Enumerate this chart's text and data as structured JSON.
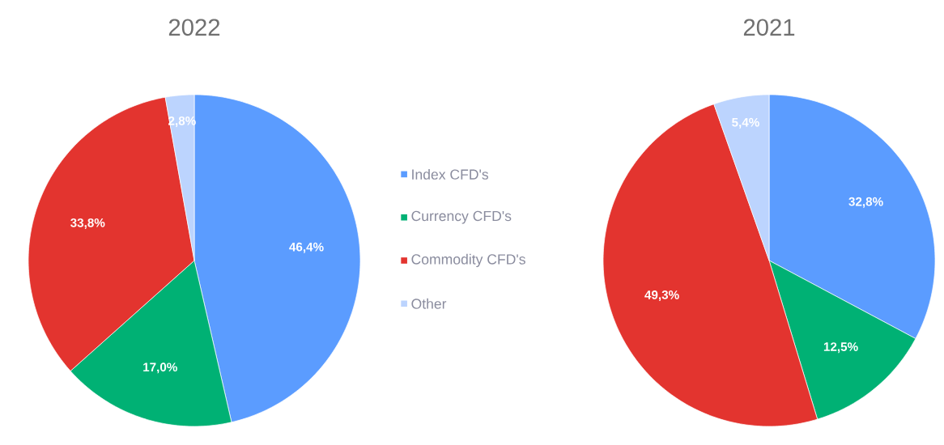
{
  "chart_data": [
    {
      "type": "pie",
      "title": "2022",
      "categories": [
        "Index CFD's",
        "Currency CFD's",
        "Commodity CFD's",
        "Other"
      ],
      "values": [
        46.4,
        17.0,
        33.8,
        2.8
      ],
      "value_labels": [
        "46,4%",
        "17,0%",
        "33,8%",
        "2,8%"
      ],
      "colors": [
        "#5b9cff",
        "#00b174",
        "#e3342f",
        "#bcd4fe"
      ],
      "legend": "right"
    },
    {
      "type": "pie",
      "title": "2021",
      "categories": [
        null,
        null,
        null,
        null
      ],
      "values": [
        32.8,
        12.5,
        49.3,
        5.4
      ],
      "value_labels": [
        "32,8%",
        "12,5%",
        "49,3%",
        "5,4%"
      ],
      "colors": [
        "#5b9cff",
        "#00b174",
        "#e3342f",
        "#bcd4fe"
      ]
    }
  ]
}
